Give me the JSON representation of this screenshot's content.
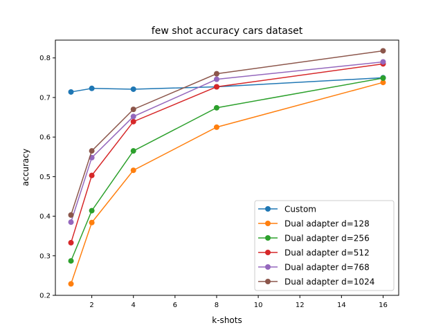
{
  "chart_data": {
    "type": "line",
    "title": "few shot accuracy cars dataset",
    "xlabel": "k-shots",
    "ylabel": "accuracy",
    "x": [
      1,
      2,
      4,
      8,
      16
    ],
    "xlim": [
      0.25,
      16.75
    ],
    "ylim": [
      0.2,
      0.845
    ],
    "xticks": [
      2,
      4,
      6,
      8,
      10,
      12,
      14,
      16
    ],
    "yticks": [
      0.2,
      0.3,
      0.4,
      0.5,
      0.6,
      0.7,
      0.8
    ],
    "ytick_labels": [
      "0.2",
      "0.3",
      "0.4",
      "0.5",
      "0.6",
      "0.7",
      "0.8"
    ],
    "grid": false,
    "legend_position": "lower-right",
    "series": [
      {
        "name": "Custom",
        "color": "#1f77b4",
        "values": [
          0.714,
          0.723,
          0.721,
          0.727,
          0.75
        ]
      },
      {
        "name": "Dual adapter d=128",
        "color": "#ff7f0e",
        "values": [
          0.229,
          0.384,
          0.516,
          0.625,
          0.738
        ]
      },
      {
        "name": "Dual adapter d=256",
        "color": "#2ca02c",
        "values": [
          0.287,
          0.414,
          0.565,
          0.674,
          0.749
        ]
      },
      {
        "name": "Dual adapter d=512",
        "color": "#d62728",
        "values": [
          0.333,
          0.503,
          0.639,
          0.727,
          0.785
        ]
      },
      {
        "name": "Dual adapter d=768",
        "color": "#9467bd",
        "values": [
          0.385,
          0.548,
          0.652,
          0.746,
          0.79
        ]
      },
      {
        "name": "Dual adapter d=1024",
        "color": "#8c564b",
        "values": [
          0.403,
          0.565,
          0.67,
          0.76,
          0.818
        ]
      }
    ]
  }
}
